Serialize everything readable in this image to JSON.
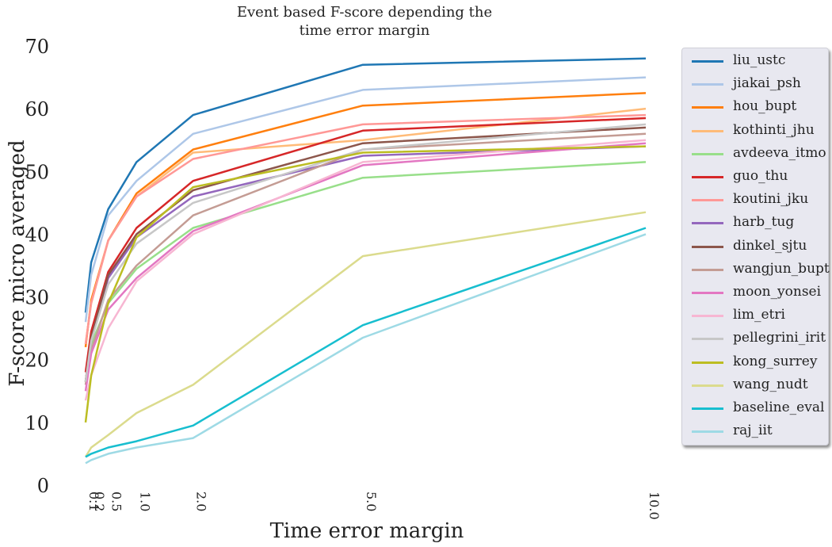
{
  "chart_data": {
    "type": "line",
    "title_lines": [
      "Event based F-score depending the",
      "time error margin"
    ],
    "xlabel": "Time error margin",
    "ylabel": "F-score micro averaged",
    "xlim": [
      0.1,
      10.0
    ],
    "ylim": [
      0,
      70
    ],
    "x": [
      0.1,
      0.2,
      0.5,
      1.0,
      2.0,
      5.0,
      10.0
    ],
    "x_tick_labels": [
      "0.1",
      "0.2",
      "0.5",
      "1.0",
      "2.0",
      "5.0",
      "10.0"
    ],
    "y_ticks": [
      0,
      10,
      20,
      30,
      40,
      50,
      60,
      70
    ],
    "grid": false,
    "legend_position": "outside-right",
    "series": [
      {
        "name": "liu_ustc",
        "color": "#1f77b4",
        "values": [
          27.5,
          35.5,
          44.0,
          51.5,
          59.0,
          67.0,
          68.0
        ]
      },
      {
        "name": "jiakai_psh",
        "color": "#aec7e8",
        "values": [
          26.0,
          33.5,
          43.0,
          48.5,
          56.0,
          63.0,
          65.0
        ]
      },
      {
        "name": "hou_bupt",
        "color": "#ff7f0e",
        "values": [
          22.0,
          29.5,
          39.0,
          46.5,
          53.5,
          60.5,
          62.5
        ]
      },
      {
        "name": "kothinti_jhu",
        "color": "#ffbb78",
        "values": [
          22.5,
          29.0,
          39.0,
          46.0,
          53.0,
          55.0,
          60.0
        ]
      },
      {
        "name": "avdeeva_itmo",
        "color": "#98df8a",
        "values": [
          16.5,
          22.5,
          29.0,
          34.5,
          41.0,
          49.0,
          51.5
        ]
      },
      {
        "name": "guo_thu",
        "color": "#d62728",
        "values": [
          18.0,
          24.5,
          34.0,
          41.0,
          48.5,
          56.5,
          58.5
        ]
      },
      {
        "name": "koutini_jku",
        "color": "#ff9896",
        "values": [
          22.5,
          29.0,
          39.0,
          46.0,
          52.0,
          57.5,
          59.0
        ]
      },
      {
        "name": "harb_tug",
        "color": "#9467bd",
        "values": [
          16.5,
          23.0,
          33.0,
          39.5,
          46.0,
          52.5,
          54.0
        ]
      },
      {
        "name": "dinkel_sjtu",
        "color": "#8c564b",
        "values": [
          16.5,
          23.5,
          33.5,
          40.0,
          47.0,
          54.5,
          57.0
        ]
      },
      {
        "name": "wangjun_bupt",
        "color": "#c49c94",
        "values": [
          16.0,
          21.5,
          29.5,
          35.0,
          43.0,
          53.5,
          56.0
        ]
      },
      {
        "name": "moon_yonsei",
        "color": "#e377c2",
        "values": [
          15.0,
          21.0,
          28.0,
          33.0,
          40.5,
          51.0,
          54.5
        ]
      },
      {
        "name": "lim_etri",
        "color": "#f7b6d2",
        "values": [
          13.5,
          17.5,
          25.0,
          32.5,
          40.0,
          51.5,
          55.0
        ]
      },
      {
        "name": "pellegrini_irit",
        "color": "#c7c7c7",
        "values": [
          16.5,
          23.0,
          32.0,
          38.5,
          45.0,
          53.5,
          57.5
        ]
      },
      {
        "name": "kong_surrey",
        "color": "#bcbd22",
        "values": [
          10.0,
          17.5,
          29.0,
          39.5,
          47.5,
          53.0,
          54.0
        ]
      },
      {
        "name": "wang_nudt",
        "color": "#dbdb8d",
        "values": [
          4.5,
          6.0,
          8.0,
          11.5,
          16.0,
          36.5,
          43.5
        ]
      },
      {
        "name": "baseline_eval",
        "color": "#17becf",
        "values": [
          4.5,
          5.0,
          6.0,
          7.0,
          9.5,
          25.5,
          41.0
        ]
      },
      {
        "name": "raj_iit",
        "color": "#9edae5",
        "values": [
          3.5,
          4.0,
          5.0,
          6.0,
          7.5,
          23.5,
          40.0
        ]
      }
    ]
  }
}
